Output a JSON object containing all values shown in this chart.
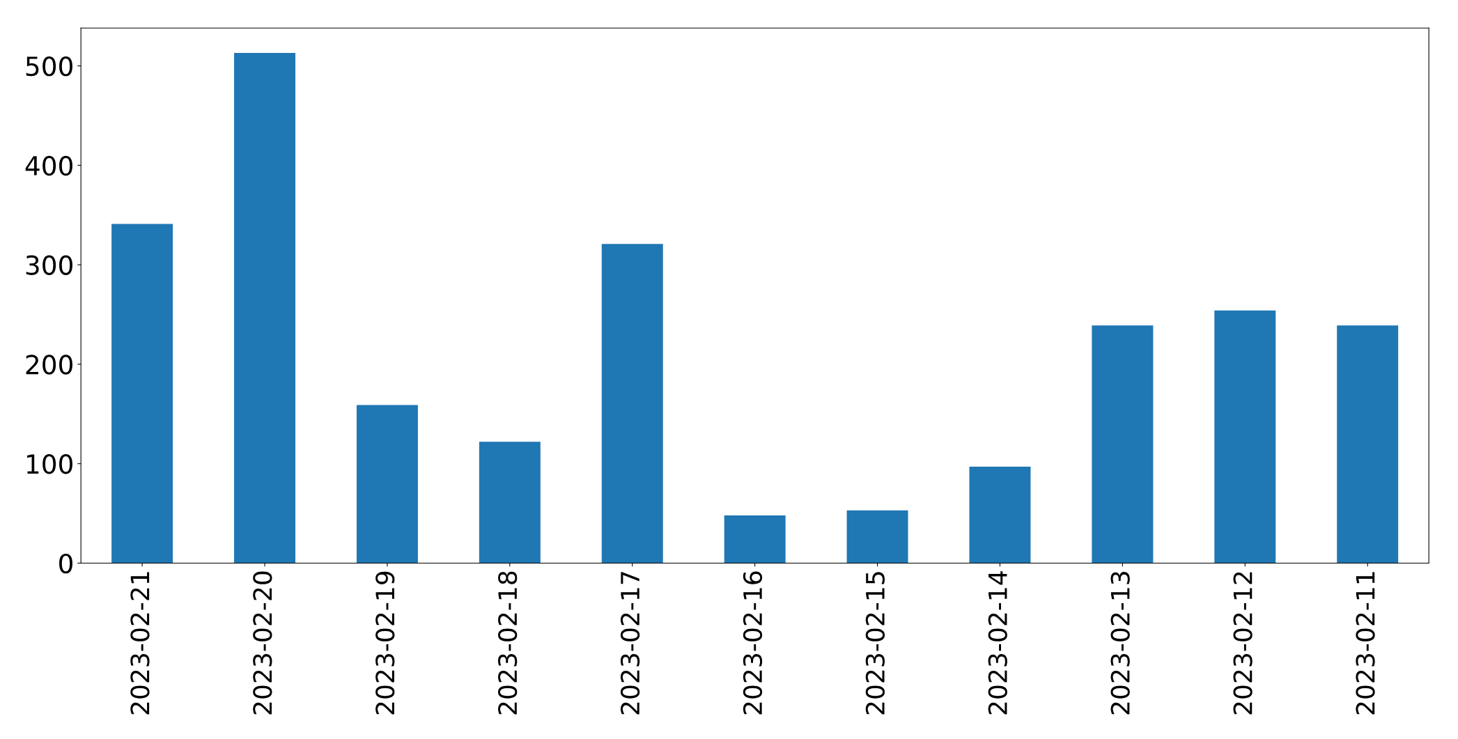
{
  "chart_data": {
    "type": "bar",
    "categories": [
      "2023-02-21",
      "2023-02-20",
      "2023-02-19",
      "2023-02-18",
      "2023-02-17",
      "2023-02-16",
      "2023-02-15",
      "2023-02-14",
      "2023-02-13",
      "2023-02-12",
      "2023-02-11"
    ],
    "values": [
      341,
      513,
      159,
      122,
      321,
      48,
      53,
      97,
      239,
      254,
      239
    ],
    "color": "#1f77b4",
    "ylim": [
      0,
      538
    ],
    "yticks": [
      0,
      100,
      200,
      300,
      400,
      500
    ],
    "grid": false
  }
}
